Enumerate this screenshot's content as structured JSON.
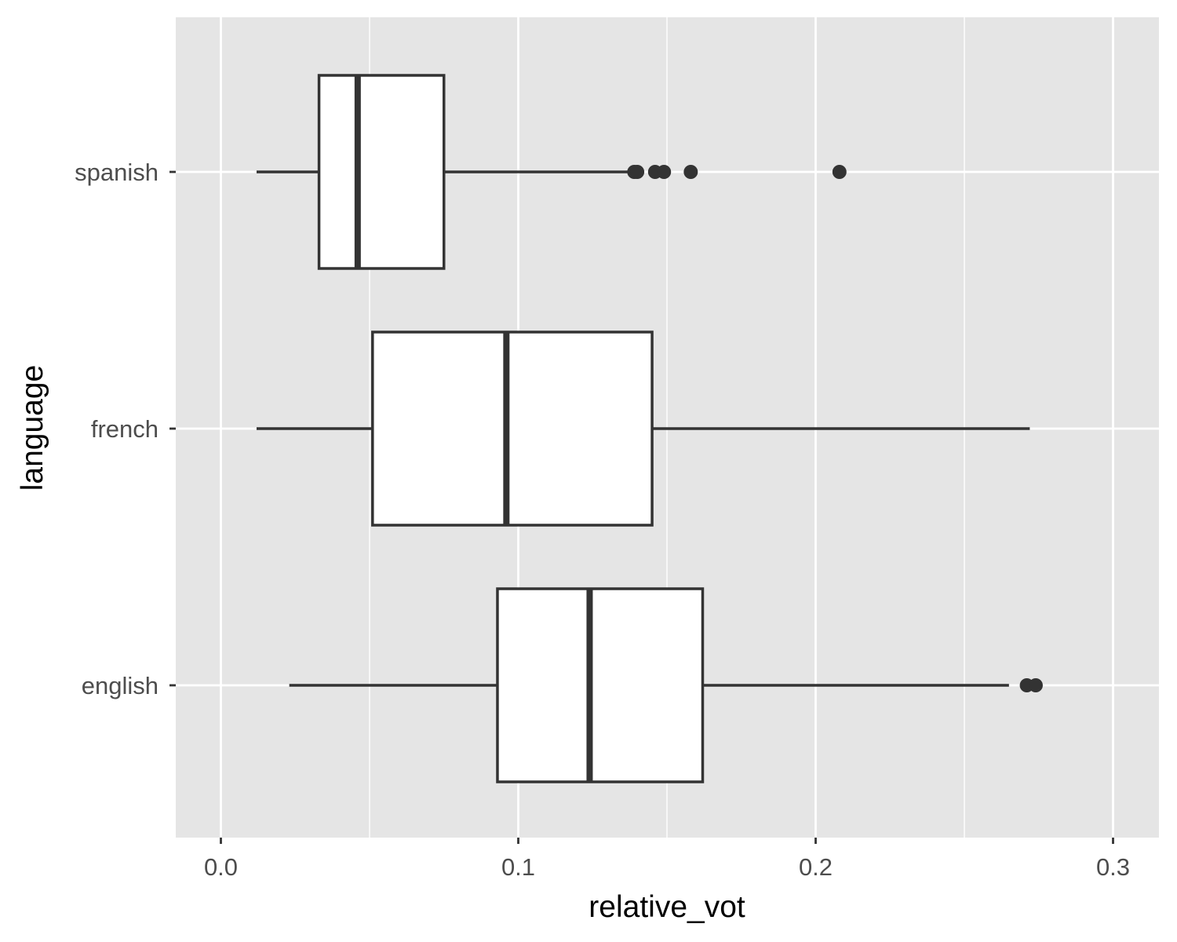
{
  "chart_data": {
    "type": "boxplot",
    "orientation": "horizontal",
    "xlabel": "relative_vot",
    "ylabel": "language",
    "xlim": [
      -0.015,
      0.315
    ],
    "x_ticks": [
      0.0,
      0.1,
      0.2,
      0.3
    ],
    "x_tick_labels": [
      "0.0",
      "0.1",
      "0.2",
      "0.3"
    ],
    "grid": true,
    "panel_background": "#e5e5e5",
    "gridline_color": "#ffffff",
    "box_fill": "#ffffff",
    "line_color": "#333333",
    "categories": [
      "english",
      "french",
      "spanish"
    ],
    "boxes": [
      {
        "category": "english",
        "min": 0.023,
        "q1": 0.093,
        "median": 0.124,
        "q3": 0.162,
        "max": 0.265,
        "outliers": [
          0.271,
          0.274
        ]
      },
      {
        "category": "french",
        "min": 0.012,
        "q1": 0.051,
        "median": 0.096,
        "q3": 0.145,
        "max": 0.272,
        "outliers": []
      },
      {
        "category": "spanish",
        "min": 0.012,
        "q1": 0.033,
        "median": 0.046,
        "q3": 0.075,
        "max": 0.137,
        "outliers": [
          0.139,
          0.14,
          0.146,
          0.149,
          0.158,
          0.208
        ]
      }
    ]
  }
}
